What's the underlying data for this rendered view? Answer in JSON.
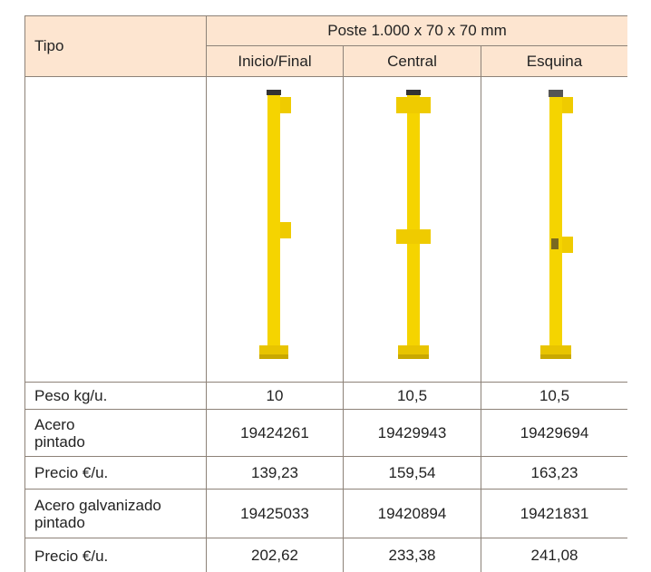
{
  "header": {
    "tipo": "Tipo",
    "group": "Poste 1.000 x 70 x 70 mm",
    "columns": [
      "Inicio/Final",
      "Central",
      "Esquina"
    ]
  },
  "rows": [
    {
      "label": "Peso kg/u.",
      "values": [
        "10",
        "10,5",
        "10,5"
      ]
    },
    {
      "label": "Acero\npintado",
      "values": [
        "19424261",
        "19429943",
        "19429694"
      ]
    },
    {
      "label": "Precio €/u.",
      "values": [
        "139,23",
        "159,54",
        "163,23"
      ]
    },
    {
      "label": "Acero galvanizado\npintado",
      "values": [
        "19425033",
        "19420894",
        "19421831"
      ]
    },
    {
      "label": "Precio €/u.",
      "values": [
        "202,62",
        "233,38",
        "241,08"
      ]
    }
  ]
}
